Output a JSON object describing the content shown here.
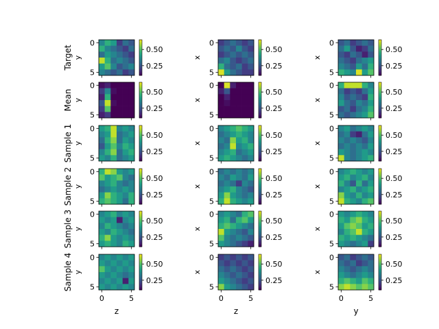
{
  "chart_data": {
    "type": "heatmap",
    "colormap": "viridis",
    "grid": false,
    "rows": [
      "Target",
      "Mean",
      "Sample 1",
      "Sample 2",
      "Sample 3",
      "Sample 4"
    ],
    "columns": [
      {
        "xlabel": "z",
        "ylabel": "y"
      },
      {
        "xlabel": "z",
        "ylabel": "x"
      },
      {
        "xlabel": "y",
        "ylabel": "x"
      }
    ],
    "x_ticks": [
      "0",
      "5"
    ],
    "y_ticks": [
      "0",
      "5"
    ],
    "colorbar_ticks": [
      "0.25",
      "0.50"
    ],
    "colorbar_range": [
      0.1,
      0.65
    ],
    "grids": [
      [
        [
          [
            0.35,
            0.45,
            0.4,
            0.2,
            0.3,
            0.25
          ],
          [
            0.45,
            0.35,
            0.3,
            0.25,
            0.2,
            0.3
          ],
          [
            0.3,
            0.4,
            0.35,
            0.3,
            0.25,
            0.2
          ],
          [
            0.6,
            0.45,
            0.3,
            0.35,
            0.3,
            0.25
          ],
          [
            0.4,
            0.5,
            0.35,
            0.25,
            0.3,
            0.35
          ],
          [
            0.35,
            0.3,
            0.25,
            0.3,
            0.2,
            0.25
          ]
        ],
        [
          [
            0.2,
            0.25,
            0.3,
            0.25,
            0.2,
            0.25
          ],
          [
            0.25,
            0.3,
            0.25,
            0.35,
            0.25,
            0.2
          ],
          [
            0.2,
            0.25,
            0.3,
            0.25,
            0.3,
            0.25
          ],
          [
            0.3,
            0.35,
            0.25,
            0.2,
            0.25,
            0.3
          ],
          [
            0.45,
            0.3,
            0.25,
            0.3,
            0.2,
            0.25
          ],
          [
            0.62,
            0.4,
            0.3,
            0.25,
            0.2,
            0.2
          ]
        ],
        [
          [
            0.25,
            0.3,
            0.2,
            0.25,
            0.3,
            0.25
          ],
          [
            0.3,
            0.4,
            0.25,
            0.15,
            0.2,
            0.3
          ],
          [
            0.25,
            0.2,
            0.3,
            0.25,
            0.15,
            0.25
          ],
          [
            0.3,
            0.25,
            0.2,
            0.3,
            0.35,
            0.4
          ],
          [
            0.35,
            0.3,
            0.25,
            0.4,
            0.3,
            0.45
          ],
          [
            0.45,
            0.4,
            0.35,
            0.62,
            0.4,
            0.5
          ]
        ]
      ],
      [
        [
          [
            0.12,
            0.15,
            0.1,
            0.1,
            0.1,
            0.1
          ],
          [
            0.2,
            0.35,
            0.12,
            0.1,
            0.1,
            0.1
          ],
          [
            0.15,
            0.45,
            0.1,
            0.1,
            0.1,
            0.1
          ],
          [
            0.25,
            0.6,
            0.12,
            0.1,
            0.1,
            0.1
          ],
          [
            0.2,
            0.5,
            0.1,
            0.1,
            0.1,
            0.1
          ],
          [
            0.15,
            0.2,
            0.1,
            0.1,
            0.1,
            0.1
          ]
        ],
        [
          [
            0.1,
            0.62,
            0.15,
            0.1,
            0.1,
            0.1
          ],
          [
            0.15,
            0.25,
            0.1,
            0.1,
            0.1,
            0.1
          ],
          [
            0.1,
            0.15,
            0.1,
            0.1,
            0.1,
            0.1
          ],
          [
            0.1,
            0.12,
            0.1,
            0.1,
            0.1,
            0.1
          ],
          [
            0.1,
            0.1,
            0.1,
            0.1,
            0.1,
            0.1
          ],
          [
            0.1,
            0.1,
            0.1,
            0.1,
            0.1,
            0.1
          ]
        ],
        [
          [
            0.45,
            0.6,
            0.6,
            0.6,
            0.45,
            0.35
          ],
          [
            0.3,
            0.2,
            0.25,
            0.2,
            0.3,
            0.4
          ],
          [
            0.35,
            0.25,
            0.3,
            0.25,
            0.2,
            0.45
          ],
          [
            0.4,
            0.3,
            0.25,
            0.35,
            0.3,
            0.4
          ],
          [
            0.25,
            0.3,
            0.2,
            0.3,
            0.35,
            0.45
          ],
          [
            0.3,
            0.25,
            0.3,
            0.35,
            0.4,
            0.5
          ]
        ]
      ],
      [
        [
          [
            0.4,
            0.45,
            0.6,
            0.35,
            0.4,
            0.35
          ],
          [
            0.35,
            0.4,
            0.6,
            0.3,
            0.35,
            0.4
          ],
          [
            0.3,
            0.45,
            0.55,
            0.3,
            0.4,
            0.35
          ],
          [
            0.25,
            0.4,
            0.5,
            0.35,
            0.45,
            0.4
          ],
          [
            0.35,
            0.45,
            0.55,
            0.3,
            0.4,
            0.45
          ],
          [
            0.4,
            0.35,
            0.45,
            0.3,
            0.35,
            0.4
          ]
        ],
        [
          [
            0.35,
            0.4,
            0.45,
            0.5,
            0.45,
            0.4
          ],
          [
            0.3,
            0.35,
            0.4,
            0.45,
            0.4,
            0.35
          ],
          [
            0.35,
            0.3,
            0.55,
            0.4,
            0.45,
            0.35
          ],
          [
            0.3,
            0.35,
            0.6,
            0.35,
            0.4,
            0.45
          ],
          [
            0.35,
            0.4,
            0.45,
            0.3,
            0.35,
            0.4
          ],
          [
            0.4,
            0.45,
            0.4,
            0.35,
            0.3,
            0.35
          ]
        ],
        [
          [
            0.35,
            0.4,
            0.3,
            0.35,
            0.4,
            0.35
          ],
          [
            0.3,
            0.35,
            0.2,
            0.15,
            0.3,
            0.4
          ],
          [
            0.35,
            0.3,
            0.35,
            0.3,
            0.25,
            0.35
          ],
          [
            0.3,
            0.35,
            0.3,
            0.35,
            0.3,
            0.4
          ],
          [
            0.4,
            0.35,
            0.3,
            0.35,
            0.4,
            0.35
          ],
          [
            0.6,
            0.35,
            0.3,
            0.35,
            0.4,
            0.45
          ]
        ]
      ],
      [
        [
          [
            0.45,
            0.6,
            0.55,
            0.4,
            0.35,
            0.4
          ],
          [
            0.5,
            0.4,
            0.45,
            0.5,
            0.35,
            0.3
          ],
          [
            0.35,
            0.4,
            0.45,
            0.35,
            0.3,
            0.35
          ],
          [
            0.3,
            0.35,
            0.4,
            0.35,
            0.4,
            0.35
          ],
          [
            0.4,
            0.55,
            0.45,
            0.4,
            0.35,
            0.45
          ],
          [
            0.45,
            0.5,
            0.45,
            0.4,
            0.3,
            0.45
          ]
        ],
        [
          [
            0.3,
            0.35,
            0.3,
            0.35,
            0.3,
            0.35
          ],
          [
            0.35,
            0.3,
            0.4,
            0.35,
            0.3,
            0.4
          ],
          [
            0.3,
            0.35,
            0.3,
            0.2,
            0.35,
            0.3
          ],
          [
            0.35,
            0.4,
            0.45,
            0.35,
            0.3,
            0.25
          ],
          [
            0.4,
            0.55,
            0.4,
            0.35,
            0.3,
            0.35
          ],
          [
            0.45,
            0.6,
            0.45,
            0.4,
            0.35,
            0.4
          ]
        ],
        [
          [
            0.35,
            0.4,
            0.45,
            0.4,
            0.35,
            0.4
          ],
          [
            0.4,
            0.45,
            0.35,
            0.4,
            0.45,
            0.35
          ],
          [
            0.45,
            0.35,
            0.25,
            0.45,
            0.3,
            0.4
          ],
          [
            0.35,
            0.4,
            0.45,
            0.35,
            0.4,
            0.45
          ],
          [
            0.55,
            0.4,
            0.35,
            0.45,
            0.35,
            0.4
          ],
          [
            0.6,
            0.45,
            0.4,
            0.35,
            0.45,
            0.5
          ]
        ]
      ],
      [
        [
          [
            0.35,
            0.4,
            0.45,
            0.35,
            0.4,
            0.35
          ],
          [
            0.4,
            0.35,
            0.4,
            0.15,
            0.35,
            0.4
          ],
          [
            0.35,
            0.45,
            0.4,
            0.35,
            0.3,
            0.35
          ],
          [
            0.4,
            0.35,
            0.45,
            0.4,
            0.35,
            0.3
          ],
          [
            0.45,
            0.55,
            0.4,
            0.35,
            0.4,
            0.35
          ],
          [
            0.4,
            0.45,
            0.4,
            0.35,
            0.45,
            0.4
          ]
        ],
        [
          [
            0.35,
            0.4,
            0.35,
            0.3,
            0.45,
            0.5
          ],
          [
            0.4,
            0.45,
            0.3,
            0.45,
            0.5,
            0.4
          ],
          [
            0.45,
            0.5,
            0.45,
            0.4,
            0.35,
            0.3
          ],
          [
            0.6,
            0.4,
            0.35,
            0.3,
            0.25,
            0.35
          ],
          [
            0.5,
            0.35,
            0.3,
            0.35,
            0.3,
            0.25
          ],
          [
            0.4,
            0.35,
            0.3,
            0.25,
            0.2,
            0.15
          ]
        ],
        [
          [
            0.4,
            0.35,
            0.4,
            0.45,
            0.4,
            0.35
          ],
          [
            0.45,
            0.4,
            0.5,
            0.55,
            0.45,
            0.4
          ],
          [
            0.4,
            0.5,
            0.55,
            0.5,
            0.4,
            0.45
          ],
          [
            0.35,
            0.45,
            0.5,
            0.6,
            0.45,
            0.4
          ],
          [
            0.45,
            0.4,
            0.45,
            0.4,
            0.35,
            0.3
          ],
          [
            0.4,
            0.35,
            0.3,
            0.35,
            0.4,
            0.2
          ]
        ]
      ],
      [
        [
          [
            0.35,
            0.4,
            0.35,
            0.4,
            0.35,
            0.4
          ],
          [
            0.4,
            0.35,
            0.4,
            0.35,
            0.4,
            0.35
          ],
          [
            0.5,
            0.4,
            0.35,
            0.4,
            0.35,
            0.4
          ],
          [
            0.4,
            0.35,
            0.4,
            0.35,
            0.3,
            0.35
          ],
          [
            0.35,
            0.4,
            0.35,
            0.4,
            0.15,
            0.4
          ],
          [
            0.4,
            0.35,
            0.4,
            0.35,
            0.4,
            0.35
          ]
        ],
        [
          [
            0.2,
            0.25,
            0.2,
            0.25,
            0.2,
            0.25
          ],
          [
            0.25,
            0.2,
            0.25,
            0.2,
            0.25,
            0.2
          ],
          [
            0.3,
            0.25,
            0.3,
            0.25,
            0.2,
            0.25
          ],
          [
            0.35,
            0.3,
            0.25,
            0.3,
            0.25,
            0.2
          ],
          [
            0.4,
            0.35,
            0.3,
            0.25,
            0.2,
            0.25
          ],
          [
            0.55,
            0.4,
            0.35,
            0.3,
            0.25,
            0.2
          ]
        ],
        [
          [
            0.25,
            0.3,
            0.2,
            0.25,
            0.3,
            0.25
          ],
          [
            0.3,
            0.25,
            0.3,
            0.2,
            0.25,
            0.3
          ],
          [
            0.35,
            0.3,
            0.25,
            0.3,
            0.35,
            0.3
          ],
          [
            0.4,
            0.35,
            0.3,
            0.35,
            0.4,
            0.35
          ],
          [
            0.45,
            0.5,
            0.45,
            0.4,
            0.5,
            0.45
          ],
          [
            0.55,
            0.6,
            0.55,
            0.5,
            0.55,
            0.5
          ]
        ]
      ]
    ]
  }
}
